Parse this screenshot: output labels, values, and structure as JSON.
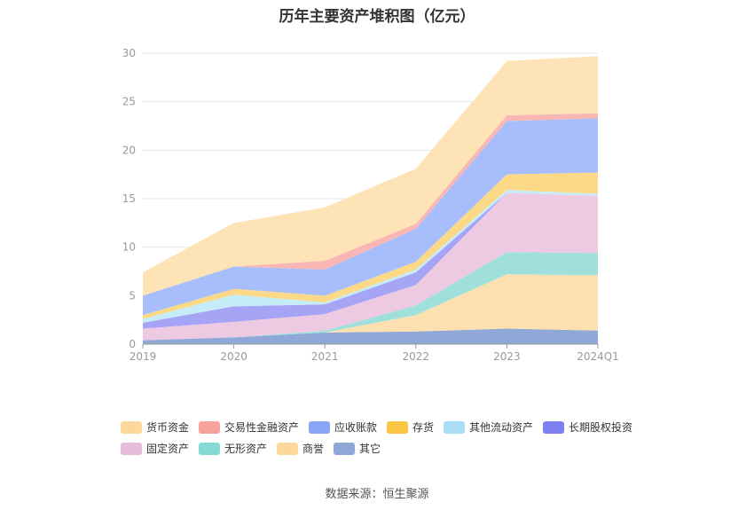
{
  "title": "历年主要资产堆积图（亿元）",
  "source": "数据来源：恒生聚源",
  "chart_data": {
    "type": "area",
    "stacked": true,
    "categories": [
      "2019",
      "2020",
      "2021",
      "2022",
      "2023",
      "2024Q1"
    ],
    "ylim": [
      0,
      30
    ],
    "yticks": [
      0,
      5,
      10,
      15,
      20,
      25,
      30
    ],
    "grid": true,
    "legend_position": "bottom",
    "series": [
      {
        "name": "其它",
        "color": "#8fa8d8",
        "values": [
          0.4,
          0.7,
          1.2,
          1.3,
          1.6,
          1.4
        ]
      },
      {
        "name": "商誉",
        "color": "#fde0b0",
        "values": [
          0.0,
          0.0,
          0.0,
          1.7,
          5.6,
          5.7
        ]
      },
      {
        "name": "无形资产",
        "color": "#9fe0dc",
        "values": [
          0.0,
          0.0,
          0.2,
          1.0,
          2.3,
          2.3
        ]
      },
      {
        "name": "固定资产",
        "color": "#edc9e2",
        "values": [
          1.2,
          1.6,
          1.7,
          2.1,
          6.1,
          5.9
        ]
      },
      {
        "name": "长期股权投资",
        "color": "#a5a4f5",
        "values": [
          0.6,
          1.6,
          1.0,
          1.3,
          0.0,
          0.0
        ]
      },
      {
        "name": "其他流动资产",
        "color": "#c6ecf8",
        "values": [
          0.4,
          1.2,
          0.2,
          0.3,
          0.3,
          0.2
        ]
      },
      {
        "name": "存货",
        "color": "#fcd986",
        "values": [
          0.4,
          0.6,
          0.7,
          0.8,
          1.6,
          2.2
        ]
      },
      {
        "name": "应收账款",
        "color": "#a8bdfb",
        "values": [
          2.0,
          2.3,
          2.7,
          3.4,
          5.5,
          5.6
        ]
      },
      {
        "name": "交易性金融资产",
        "color": "#f9b6b2",
        "values": [
          0.0,
          0.0,
          0.9,
          0.5,
          0.6,
          0.5
        ]
      },
      {
        "name": "货币资金",
        "color": "#fde3b6",
        "values": [
          2.4,
          4.5,
          5.5,
          5.7,
          5.6,
          5.9
        ]
      }
    ]
  },
  "legend": [
    {
      "label": "货币资金",
      "color": "#fcd79b"
    },
    {
      "label": "交易性金融资产",
      "color": "#f7a39b"
    },
    {
      "label": "应收账款",
      "color": "#8aa6f6"
    },
    {
      "label": "存货",
      "color": "#fbc544"
    },
    {
      "label": "其他流动资产",
      "color": "#a9def7"
    },
    {
      "label": "长期股权投资",
      "color": "#7b7ff0"
    },
    {
      "label": "固定资产",
      "color": "#e7bcdb"
    },
    {
      "label": "无形资产",
      "color": "#86d8d3"
    },
    {
      "label": "商誉",
      "color": "#fcd79b"
    },
    {
      "label": "其它",
      "color": "#8fa8d8"
    }
  ]
}
